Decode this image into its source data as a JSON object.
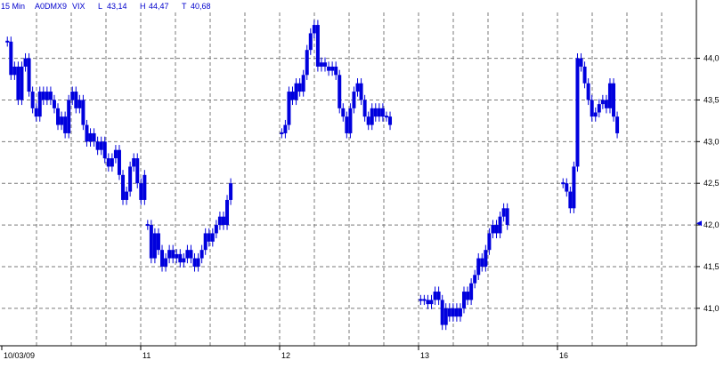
{
  "header": {
    "interval": "15 Min",
    "symbol": "A0DMX9",
    "name": "VIX",
    "low_label": "L",
    "low_value": "43,14",
    "high_label": "H",
    "high_value": "44,47",
    "last_label": "T",
    "last_value": "40,68"
  },
  "colors": {
    "candle": "#0000dd",
    "header_text": "#0000cc",
    "axis": "#000000",
    "grid": "#7a7a7a",
    "background": "#ffffff"
  },
  "chart_data": {
    "type": "candlestick",
    "grid": true,
    "y_axis_side": "right",
    "ylim": [
      40.55,
      44.55
    ],
    "yticks": [
      41.0,
      41.5,
      42.0,
      42.5,
      43.0,
      43.5,
      44.0
    ],
    "ytick_labels": [
      "41,0",
      "41,5",
      "42,0",
      "42,5",
      "43,0",
      "43,5",
      "44,0"
    ],
    "xlim": [
      0,
      100
    ],
    "xticks": [
      {
        "x": 0,
        "label": "10/03/09"
      },
      {
        "x": 20,
        "label": "11"
      },
      {
        "x": 40,
        "label": "12"
      },
      {
        "x": 60,
        "label": "13"
      },
      {
        "x": 80,
        "label": "16"
      }
    ],
    "x_gridlines": [
      5,
      10,
      15,
      20,
      25,
      30,
      35,
      40,
      45,
      50,
      55,
      60,
      65,
      70,
      75,
      80,
      85,
      90,
      95
    ],
    "last_price_marker": 42.02,
    "sessions": [
      {
        "start": 0.8,
        "step": 0.52,
        "closes": [
          44.2,
          43.8,
          43.9,
          43.5,
          43.9,
          44.0,
          43.6,
          43.4,
          43.3,
          43.6,
          43.5,
          43.6,
          43.5,
          43.4,
          43.2,
          43.3,
          43.1,
          43.5,
          43.6,
          43.4,
          43.5,
          43.2,
          43.0,
          43.1,
          43.0,
          42.9,
          43.0,
          42.8,
          42.7,
          42.8,
          42.9,
          42.6,
          42.3,
          42.4,
          42.7,
          42.8,
          42.5,
          42.3,
          42.6
        ]
      },
      {
        "start": 21.0,
        "step": 0.52,
        "closes": [
          42.0,
          41.6,
          41.9,
          41.7,
          41.5,
          41.6,
          41.7,
          41.6,
          41.65,
          41.55,
          41.6,
          41.7,
          41.6,
          41.5,
          41.6,
          41.7,
          41.9,
          41.8,
          41.9,
          42.0,
          42.1,
          42.0,
          42.3,
          42.5
        ]
      },
      {
        "start": 40.3,
        "step": 0.52,
        "closes": [
          43.1,
          43.2,
          43.6,
          43.5,
          43.7,
          43.6,
          43.8,
          44.1,
          44.3,
          44.4,
          43.9,
          43.95,
          43.9,
          43.85,
          43.9,
          43.8,
          43.4,
          43.3,
          43.1,
          43.4,
          43.6,
          43.7,
          43.5,
          43.3,
          43.2,
          43.4,
          43.3,
          43.4,
          43.3,
          43.3,
          43.2
        ]
      },
      {
        "start": 60.3,
        "step": 0.52,
        "closes": [
          41.1,
          41.1,
          41.05,
          41.1,
          41.2,
          41.1,
          40.8,
          41.0,
          40.9,
          41.0,
          40.9,
          41.0,
          41.2,
          41.1,
          41.3,
          41.4,
          41.6,
          41.5,
          41.7,
          41.9,
          42.0,
          41.9,
          42.1,
          42.2,
          42.0
        ]
      },
      {
        "start": 80.8,
        "step": 0.52,
        "closes": [
          42.5,
          42.4,
          42.2,
          42.7,
          44.0,
          43.9,
          43.7,
          43.5,
          43.3,
          43.35,
          43.45,
          43.5,
          43.4,
          43.7,
          43.3,
          43.1
        ]
      }
    ]
  }
}
